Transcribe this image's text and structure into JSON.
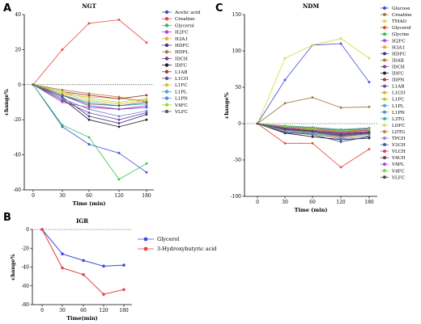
{
  "panel_letters": [
    "A",
    "C",
    "B"
  ],
  "chart_data": [
    {
      "type": "line",
      "panel": "A",
      "title": "NGT",
      "xlabel": "Time (min)",
      "ylabel": "change%",
      "x": [
        0,
        30,
        60,
        120,
        180
      ],
      "x_ticks": [
        "0",
        "30",
        "60",
        "120",
        "180"
      ],
      "ylim": [
        -60,
        40
      ],
      "y_ticks": [
        40,
        20,
        0,
        -20,
        -40,
        -60
      ],
      "baseline": 0,
      "legend_position": "right",
      "series": [
        {
          "name": "Acetic acid",
          "color": "#3b4bd8",
          "values": [
            0,
            -24,
            -34,
            -39,
            -50
          ]
        },
        {
          "name": "Creatine",
          "color": "#e8443a",
          "values": [
            0,
            20,
            35,
            37,
            24
          ]
        },
        {
          "name": "Glycerol",
          "color": "#2ec24a",
          "values": [
            0,
            -23,
            -30,
            -54,
            -45
          ]
        },
        {
          "name": "H2FC",
          "color": "#c03ad8",
          "values": [
            0,
            -10,
            -13,
            -14,
            -12
          ]
        },
        {
          "name": "H3A1",
          "color": "#e8a93a",
          "values": [
            0,
            -5,
            -7,
            -8,
            -9
          ]
        },
        {
          "name": "HDFC",
          "color": "#3a3a8a",
          "values": [
            0,
            -7,
            -18,
            -22,
            -17
          ]
        },
        {
          "name": "HDPL",
          "color": "#b07a3a",
          "values": [
            0,
            -3,
            -5,
            -7,
            -10
          ]
        },
        {
          "name": "IDCH",
          "color": "#7a3a8a",
          "values": [
            0,
            -9,
            -16,
            -20,
            -16
          ]
        },
        {
          "name": "IDFC",
          "color": "#222222",
          "values": [
            0,
            -8,
            -20,
            -24,
            -20
          ]
        },
        {
          "name": "L1AB",
          "color": "#a03a3a",
          "values": [
            0,
            -4,
            -6,
            -8,
            -6
          ]
        },
        {
          "name": "L1CH",
          "color": "#6a4a9a",
          "values": [
            0,
            -6,
            -12,
            -14,
            -13
          ]
        },
        {
          "name": "L1FC",
          "color": "#d8c03a",
          "values": [
            0,
            -5,
            -9,
            -11,
            -9
          ]
        },
        {
          "name": "L1PL",
          "color": "#3aa8d8",
          "values": [
            0,
            -6,
            -10,
            -12,
            -11
          ]
        },
        {
          "name": "L1PN",
          "color": "#5a8ad8",
          "values": [
            0,
            -8,
            -14,
            -18,
            -15
          ]
        },
        {
          "name": "V4FC",
          "color": "#a8d83a",
          "values": [
            0,
            -4,
            -8,
            -10,
            -8
          ]
        },
        {
          "name": "VLFC",
          "color": "#5a5a5a",
          "values": [
            0,
            -6,
            -11,
            -12,
            -10
          ]
        }
      ]
    },
    {
      "type": "line",
      "panel": "C",
      "title": "NDM",
      "xlabel": "Time (min)",
      "ylabel": "change%",
      "x": [
        0,
        30,
        60,
        120,
        180
      ],
      "x_ticks": [
        "0",
        "30",
        "60",
        "120",
        "180"
      ],
      "ylim": [
        -100,
        150
      ],
      "y_ticks": [
        150,
        100,
        50,
        0,
        -50,
        -100
      ],
      "baseline": 0,
      "legend_position": "right",
      "series": [
        {
          "name": "Glucose",
          "color": "#3b4bd8",
          "values": [
            0,
            60,
            108,
            110,
            57
          ]
        },
        {
          "name": "Creatine",
          "color": "#a0783a",
          "values": [
            0,
            28,
            36,
            22,
            23
          ]
        },
        {
          "name": "TMAO",
          "color": "#d8d83a",
          "values": [
            0,
            90,
            108,
            117,
            90
          ]
        },
        {
          "name": "Glycerol",
          "color": "#e8443a",
          "values": [
            0,
            -27,
            -27,
            -60,
            -35
          ]
        },
        {
          "name": "Glycine",
          "color": "#2ec24a",
          "values": [
            0,
            -10,
            -13,
            -18,
            -15
          ]
        },
        {
          "name": "H2FC",
          "color": "#c03ad8",
          "values": [
            0,
            -8,
            -10,
            -20,
            -12
          ]
        },
        {
          "name": "H3A1",
          "color": "#e8a93a",
          "values": [
            0,
            -5,
            -6,
            -10,
            -8
          ]
        },
        {
          "name": "HDFC",
          "color": "#3a3a8a",
          "values": [
            0,
            -12,
            -15,
            -25,
            -18
          ]
        },
        {
          "name": "IDAB",
          "color": "#b07a3a",
          "values": [
            0,
            -6,
            -8,
            -12,
            -9
          ]
        },
        {
          "name": "IDCH",
          "color": "#7a3a8a",
          "values": [
            0,
            -9,
            -12,
            -17,
            -14
          ]
        },
        {
          "name": "IDFC",
          "color": "#222222",
          "values": [
            0,
            -13,
            -18,
            -22,
            -20
          ]
        },
        {
          "name": "IDPN",
          "color": "#a03a3a",
          "values": [
            0,
            -7,
            -9,
            -14,
            -11
          ]
        },
        {
          "name": "L1AB",
          "color": "#6a4a9a",
          "values": [
            0,
            -4,
            -6,
            -9,
            -7
          ]
        },
        {
          "name": "L1CH",
          "color": "#d8b03a",
          "values": [
            0,
            -10,
            -14,
            -19,
            -15
          ]
        },
        {
          "name": "L1FC",
          "color": "#c0c03a",
          "values": [
            0,
            -5,
            -8,
            -13,
            -10
          ]
        },
        {
          "name": "L1PL",
          "color": "#3aa8d8",
          "values": [
            0,
            -8,
            -11,
            -16,
            -13
          ]
        },
        {
          "name": "L1PN",
          "color": "#5a8ad8",
          "values": [
            0,
            -11,
            -14,
            -21,
            -17
          ]
        },
        {
          "name": "L3TG",
          "color": "#3ab0a0",
          "values": [
            0,
            -3,
            -5,
            -8,
            -6
          ]
        },
        {
          "name": "LDFC",
          "color": "#d8d87a",
          "values": [
            0,
            -6,
            -9,
            -15,
            -12
          ]
        },
        {
          "name": "LDTG",
          "color": "#d8783a",
          "values": [
            0,
            -4,
            -6,
            -11,
            -8
          ]
        },
        {
          "name": "TPCH",
          "color": "#8a8ad8",
          "values": [
            0,
            -9,
            -12,
            -18,
            -14
          ]
        },
        {
          "name": "V3CH",
          "color": "#3a5aa8",
          "values": [
            0,
            -7,
            -10,
            -15,
            -12
          ]
        },
        {
          "name": "VLCH",
          "color": "#d83a7a",
          "values": [
            0,
            -5,
            -7,
            -12,
            -9
          ]
        },
        {
          "name": "V4CH",
          "color": "#6a3a3a",
          "values": [
            0,
            -8,
            -11,
            -16,
            -13
          ]
        },
        {
          "name": "V4PL",
          "color": "#a84ad8",
          "values": [
            0,
            -6,
            -9,
            -13,
            -11
          ]
        },
        {
          "name": "V4FC",
          "color": "#7ad83a",
          "values": [
            0,
            -4,
            -7,
            -10,
            -8
          ]
        },
        {
          "name": "VLFC",
          "color": "#4a4a4a",
          "values": [
            0,
            -7,
            -10,
            -14,
            -12
          ]
        }
      ]
    },
    {
      "type": "line",
      "panel": "B",
      "title": "IGR",
      "xlabel": "Time(min)",
      "ylabel": "change%",
      "x": [
        0,
        30,
        60,
        120,
        180
      ],
      "x_ticks": [
        "0",
        "30",
        "60",
        "120",
        "180"
      ],
      "ylim": [
        -80,
        0
      ],
      "y_ticks": [
        0,
        -20,
        -40,
        -60,
        -80
      ],
      "baseline": 0,
      "legend_position": "right",
      "series": [
        {
          "name": "Glycerol",
          "color": "#3b4bd8",
          "values": [
            0,
            -26,
            -33,
            -39,
            -38
          ]
        },
        {
          "name": "3-Hydroxybutyric acid",
          "color": "#e8443a",
          "values": [
            0,
            -41,
            -48,
            -69,
            -64
          ]
        }
      ]
    }
  ]
}
